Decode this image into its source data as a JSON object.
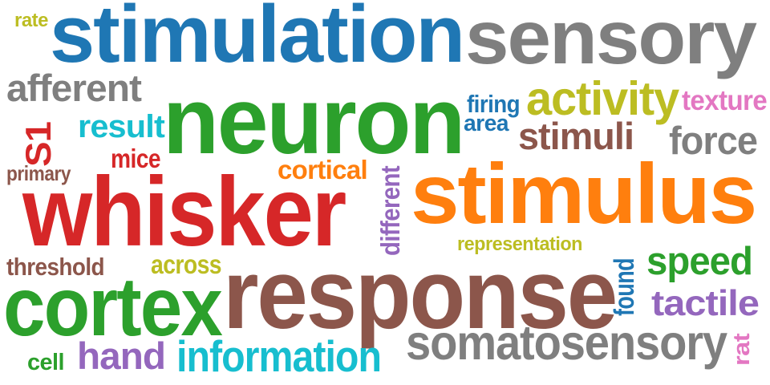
{
  "palette": {
    "blue": "#1f77b4",
    "orange": "#ff7f0e",
    "green": "#2ca02c",
    "red": "#d62728",
    "purple": "#9467bd",
    "brown": "#8c564b",
    "pink": "#e377c2",
    "gray": "#7f7f7f",
    "olive": "#bcbd22",
    "cyan": "#17becf"
  },
  "words": [
    {
      "text": "stimulation",
      "color": "blue",
      "weight": 1.0
    },
    {
      "text": "sensory",
      "color": "gray",
      "weight": 0.8
    },
    {
      "text": "neuron",
      "color": "green",
      "weight": 0.99
    },
    {
      "text": "whisker",
      "color": "red",
      "weight": 0.98
    },
    {
      "text": "stimulus",
      "color": "orange",
      "weight": 0.97
    },
    {
      "text": "response",
      "color": "brown",
      "weight": 0.96
    },
    {
      "text": "cortex",
      "color": "green",
      "weight": 0.85
    },
    {
      "text": "somatosensory",
      "color": "gray",
      "weight": 0.5
    },
    {
      "text": "activity",
      "color": "olive",
      "weight": 0.45
    },
    {
      "text": "afferent",
      "color": "gray",
      "weight": 0.42
    },
    {
      "text": "information",
      "color": "cyan",
      "weight": 0.42
    },
    {
      "text": "tactile",
      "color": "purple",
      "weight": 0.4
    },
    {
      "text": "speed",
      "color": "green",
      "weight": 0.4
    },
    {
      "text": "force",
      "color": "gray",
      "weight": 0.4
    },
    {
      "text": "hand",
      "color": "purple",
      "weight": 0.4
    },
    {
      "text": "stimuli",
      "color": "brown",
      "weight": 0.38
    },
    {
      "text": "S1",
      "color": "red",
      "weight": 0.36
    },
    {
      "text": "result",
      "color": "cyan",
      "weight": 0.33
    },
    {
      "text": "cortical",
      "color": "orange",
      "weight": 0.3
    },
    {
      "text": "texture",
      "color": "pink",
      "weight": 0.29
    },
    {
      "text": "different",
      "color": "purple",
      "weight": 0.25
    },
    {
      "text": "found",
      "color": "blue",
      "weight": 0.25
    },
    {
      "text": "threshold",
      "color": "brown",
      "weight": 0.25
    },
    {
      "text": "across",
      "color": "olive",
      "weight": 0.25
    },
    {
      "text": "mice",
      "color": "red",
      "weight": 0.24
    },
    {
      "text": "firing",
      "color": "blue",
      "weight": 0.23
    },
    {
      "text": "area",
      "color": "blue",
      "weight": 0.2
    },
    {
      "text": "representation",
      "color": "olive",
      "weight": 0.2
    },
    {
      "text": "rat",
      "color": "pink",
      "weight": 0.2
    },
    {
      "text": "cell",
      "color": "green",
      "weight": 0.2
    },
    {
      "text": "rate",
      "color": "olive",
      "weight": 0.17
    },
    {
      "text": "primary",
      "color": "brown",
      "weight": 0.17
    }
  ]
}
